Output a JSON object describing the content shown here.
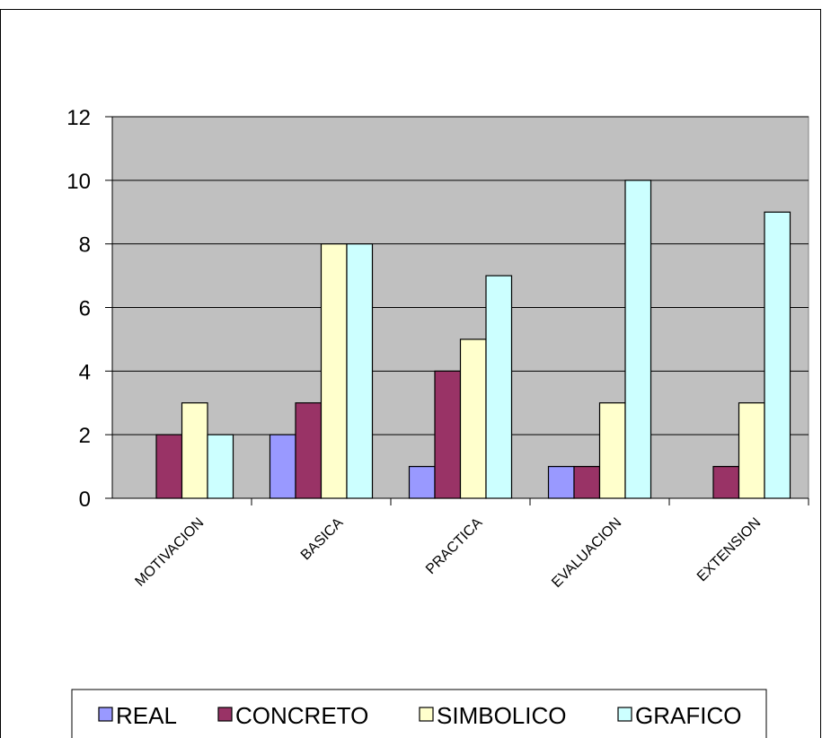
{
  "chart_data": {
    "type": "bar",
    "categories": [
      "MOTIVACION",
      "BASICA",
      "PRACTICA",
      "EVALUACION",
      "EXTENSION"
    ],
    "series": [
      {
        "name": "REAL",
        "color": "#9999ff",
        "values": [
          0,
          2,
          1,
          1,
          0
        ]
      },
      {
        "name": "CONCRETO",
        "color": "#993366",
        "values": [
          2,
          3,
          4,
          1,
          1
        ]
      },
      {
        "name": "SIMBOLICO",
        "color": "#ffffcc",
        "values": [
          3,
          8,
          5,
          3,
          3
        ]
      },
      {
        "name": "GRAFICO",
        "color": "#ccffff",
        "values": [
          2,
          8,
          7,
          10,
          9
        ]
      }
    ],
    "ylim": [
      0,
      12
    ],
    "yticks": [
      0,
      2,
      4,
      6,
      8,
      10,
      12
    ],
    "grid": true,
    "plot_background": "#c0c0c0",
    "legend_position": "bottom",
    "title": "",
    "xlabel": "",
    "ylabel": ""
  }
}
